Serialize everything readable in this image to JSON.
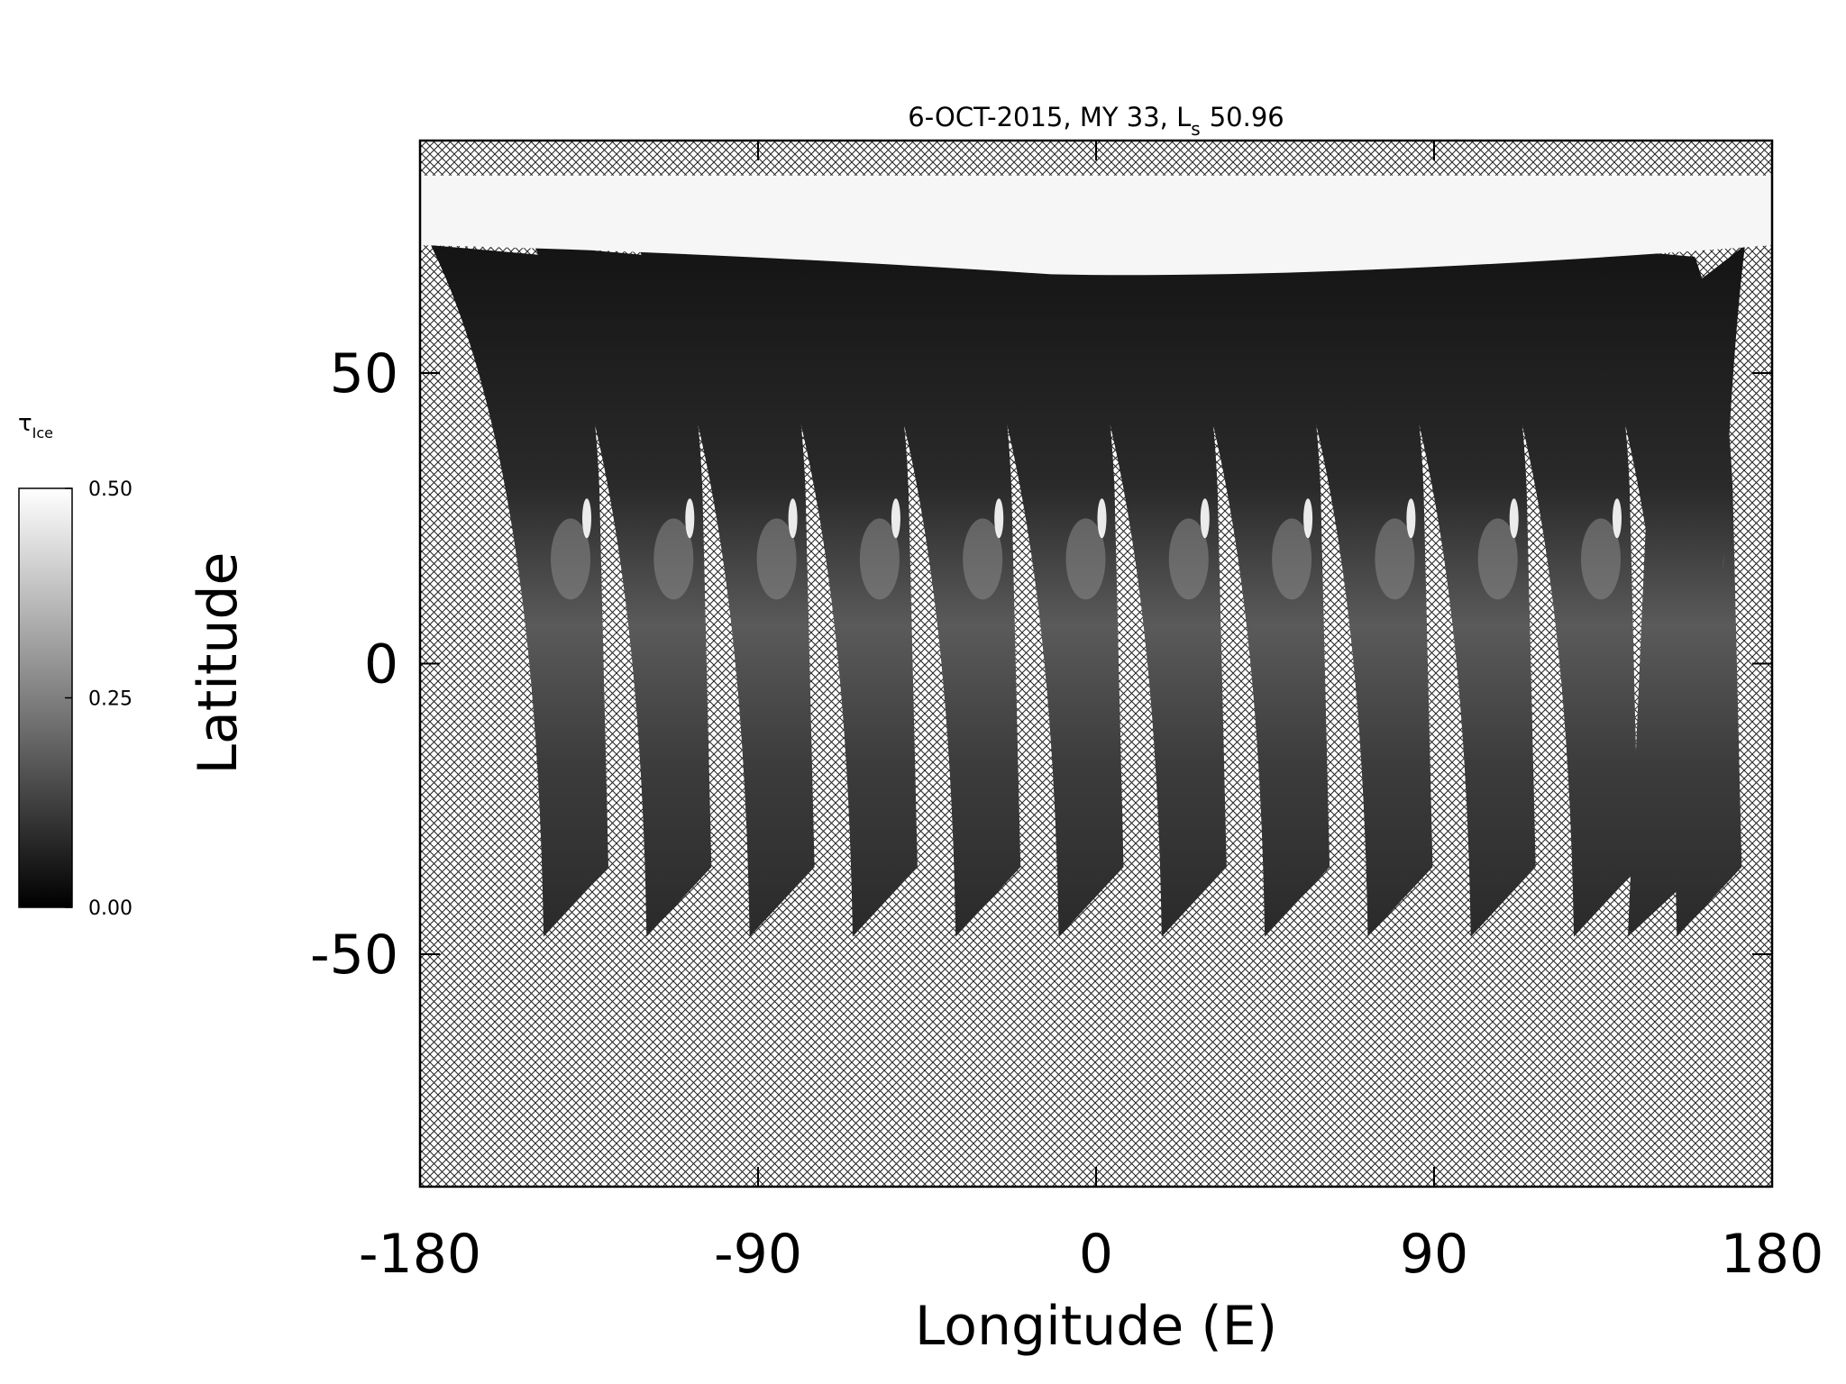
{
  "chart_data": {
    "type": "map",
    "title": "6-OCT-2015, MY 33,  L",
    "title_subscript": "s",
    "title_value": "50.96",
    "x_label": "Longitude (E)",
    "y_label": "Latitude",
    "xlim": [
      -180,
      180
    ],
    "xticks": [
      -180,
      -90,
      0,
      90,
      180
    ],
    "ylim": [
      -90,
      90
    ],
    "yticks": [
      -50,
      0,
      50
    ],
    "colorbar_label": "τ",
    "colorbar_label_subscript": "Ice",
    "colorbar_lim": [
      0,
      0.5
    ],
    "colorbar_ticks": [
      {
        "value": 0,
        "label": "0.00"
      },
      {
        "value": 0.25,
        "label": "0.25"
      },
      {
        "value": 0.5,
        "label": "0.50"
      }
    ]
  }
}
